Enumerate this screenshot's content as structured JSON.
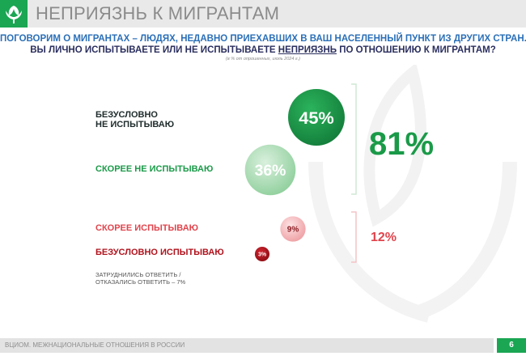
{
  "header": {
    "title": "НЕПРИЯЗНЬ К МИГРАНТАМ"
  },
  "question": {
    "line1": "ПОГОВОРИМ О МИГРАНТАХ – ЛЮДЯХ, НЕДАВНО ПРИЕХАВШИХ В ВАШ НАСЕЛЕННЫЙ ПУНКТ ИЗ ДРУГИХ СТРАН.",
    "line2_before": "ВЫ ЛИЧНО ИСПЫТЫВАЕТЕ ИЛИ НЕ ИСПЫТЫВАЕТЕ ",
    "line2_highlight": "НЕПРИЯЗНЬ",
    "line2_after": " ПО ОТНОШЕНИЮ К МИГРАНТАМ?",
    "note": "(в % от опрошенных, июль 2024 г.)"
  },
  "chart_data": {
    "type": "bubble",
    "unit": "%",
    "categories": [
      {
        "label_line1": "БЕЗУСЛОВНО",
        "label_line2": "НЕ ИСПЫТЫВАЮ",
        "value": 45,
        "color": "#1a9a48"
      },
      {
        "label_line1": "СКОРЕЕ НЕ ИСПЫТЫВАЮ",
        "label_line2": "",
        "value": 36,
        "color": "#a8dab0"
      },
      {
        "label_line1": "СКОРЕЕ ИСПЫТЫВАЮ",
        "label_line2": "",
        "value": 9,
        "color": "#f2b6b8"
      },
      {
        "label_line1": "БЕЗУСЛОВНО ИСПЫТЫВАЮ",
        "label_line2": "",
        "value": 3,
        "color": "#b0131d"
      }
    ],
    "groups": [
      {
        "value": 81,
        "color": "#1a9a48"
      },
      {
        "value": 12,
        "color": "#e0444c"
      }
    ]
  },
  "footnote": {
    "line1": "ЗАТРУДНИЛИСЬ ОТВЕТИТЬ /",
    "line2": "ОТКАЗАЛИСЬ ОТВЕТИТЬ – 7%"
  },
  "footer": {
    "text": "ВЦИОМ. МЕЖНАЦИОНАЛЬНЫЕ ОТНОШЕНИЯ В РОССИИ",
    "page": "6"
  },
  "colors": {
    "brand_green": "#1aa653",
    "title_blue": "#2b6fb7",
    "title_navy": "#2b2f5e",
    "dark_red": "#b0131d",
    "pink_red": "#e0444c"
  }
}
